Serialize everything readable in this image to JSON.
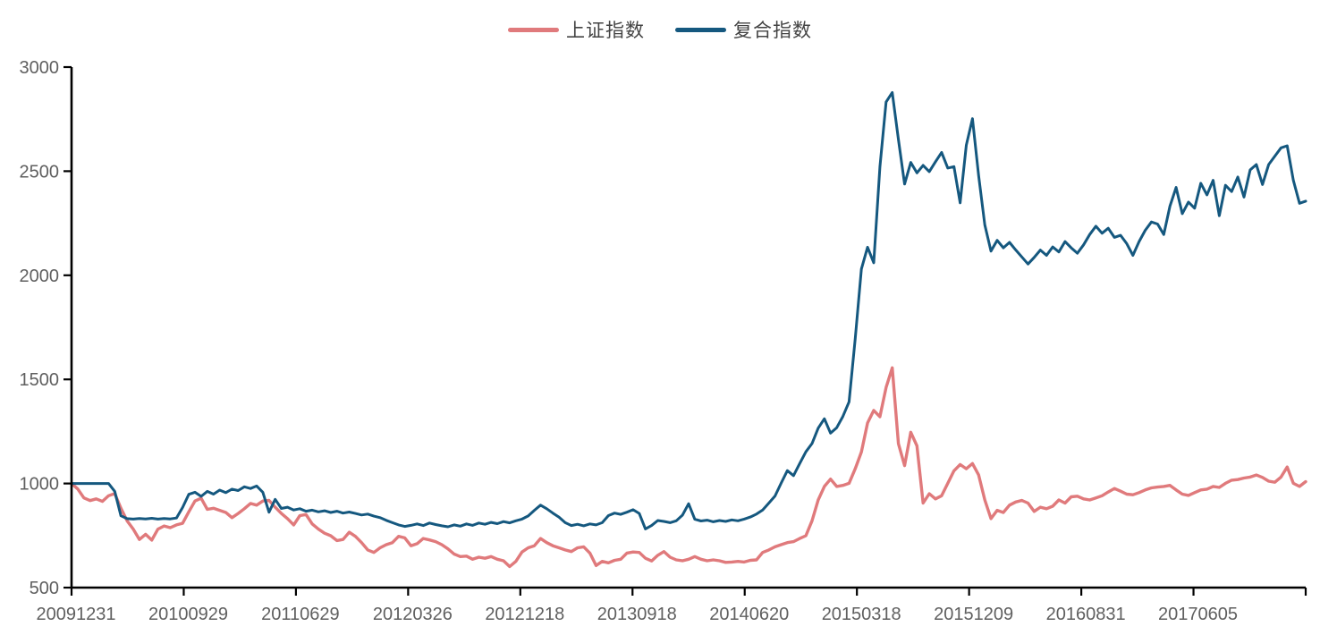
{
  "legend": {
    "items": [
      {
        "label": "上证指数",
        "color": "#e07a7c"
      },
      {
        "label": "复合指数",
        "color": "#15587f"
      }
    ]
  },
  "axes": {
    "axis_color": "#000000",
    "tick_label_color": "#5f5f5f"
  },
  "chart_data": {
    "type": "line",
    "title": "",
    "xlabel": "",
    "ylabel": "",
    "grid": false,
    "legend_position": "top-center",
    "ylim": [
      500,
      3000
    ],
    "yticks": [
      500,
      1000,
      1500,
      2000,
      2500,
      3000
    ],
    "x_labels": [
      "20091231",
      "20100929",
      "20110629",
      "20120326",
      "20121218",
      "20130918",
      "20140620",
      "20150318",
      "20151209",
      "20160831",
      "20170605"
    ],
    "x_tick_intervals": 11,
    "series": [
      {
        "name": "上证指数",
        "color": "#e07a7c",
        "line_width": 3.4,
        "values": [
          1000,
          974,
          931,
          918,
          926,
          914,
          941,
          952,
          881,
          821,
          781,
          731,
          756,
          728,
          781,
          796,
          788,
          801,
          809,
          864,
          916,
          929,
          876,
          881,
          871,
          861,
          836,
          856,
          879,
          904,
          896,
          916,
          919,
          886,
          856,
          831,
          801,
          846,
          851,
          806,
          781,
          761,
          749,
          726,
          731,
          766,
          746,
          716,
          681,
          669,
          691,
          706,
          716,
          746,
          739,
          701,
          711,
          736,
          729,
          721,
          706,
          686,
          661,
          649,
          651,
          636,
          646,
          641,
          649,
          636,
          629,
          601,
          626,
          671,
          691,
          701,
          736,
          716,
          701,
          691,
          681,
          673,
          691,
          696,
          666,
          606,
          626,
          619,
          631,
          636,
          666,
          671,
          669,
          641,
          628,
          655,
          673,
          646,
          633,
          629,
          636,
          649,
          636,
          629,
          633,
          629,
          621,
          623,
          626,
          623,
          631,
          633,
          669,
          681,
          696,
          706,
          716,
          721,
          736,
          749,
          821,
          921,
          986,
          1021,
          986,
          991,
          1001,
          1071,
          1151,
          1291,
          1351,
          1321,
          1461,
          1556,
          1191,
          1086,
          1246,
          1181,
          906,
          951,
          926,
          941,
          1001,
          1061,
          1091,
          1071,
          1096,
          1041,
          921,
          831,
          871,
          861,
          896,
          911,
          919,
          906,
          866,
          886,
          879,
          891,
          921,
          906,
          936,
          939,
          926,
          921,
          931,
          941,
          959,
          976,
          963,
          949,
          946,
          956,
          969,
          979,
          983,
          986,
          991,
          969,
          949,
          943,
          956,
          969,
          973,
          986,
          981,
          1001,
          1016,
          1019,
          1026,
          1031,
          1041,
          1029,
          1011,
          1006,
          1031,
          1079,
          1001,
          986,
          1009
        ]
      },
      {
        "name": "复合指数",
        "color": "#15587f",
        "line_width": 3,
        "values": [
          1000,
          1000,
          1000,
          1000,
          1000,
          1000,
          1000,
          962,
          845,
          831,
          829,
          832,
          830,
          833,
          829,
          832,
          830,
          834,
          885,
          948,
          958,
          938,
          962,
          949,
          968,
          956,
          973,
          966,
          984,
          976,
          988,
          958,
          862,
          924,
          880,
          886,
          873,
          879,
          867,
          872,
          864,
          869,
          861,
          867,
          858,
          863,
          856,
          849,
          853,
          843,
          836,
          823,
          812,
          801,
          794,
          799,
          806,
          798,
          810,
          803,
          797,
          792,
          801,
          795,
          806,
          799,
          810,
          804,
          813,
          807,
          817,
          811,
          821,
          829,
          844,
          871,
          896,
          879,
          858,
          838,
          812,
          798,
          804,
          797,
          806,
          801,
          812,
          846,
          858,
          852,
          862,
          874,
          856,
          782,
          798,
          822,
          818,
          812,
          821,
          848,
          903,
          828,
          820,
          824,
          816,
          822,
          818,
          825,
          821,
          829,
          839,
          853,
          873,
          906,
          940,
          1002,
          1062,
          1038,
          1096,
          1152,
          1192,
          1266,
          1311,
          1242,
          1268,
          1322,
          1392,
          1696,
          2030,
          2135,
          2060,
          2520,
          2832,
          2878,
          2652,
          2438,
          2542,
          2492,
          2528,
          2498,
          2545,
          2590,
          2515,
          2522,
          2348,
          2625,
          2752,
          2478,
          2242,
          2116,
          2168,
          2132,
          2158,
          2122,
          2088,
          2054,
          2086,
          2121,
          2096,
          2136,
          2112,
          2162,
          2132,
          2106,
          2146,
          2196,
          2236,
          2202,
          2226,
          2182,
          2192,
          2152,
          2096,
          2162,
          2216,
          2256,
          2246,
          2196,
          2332,
          2422,
          2296,
          2352,
          2322,
          2442,
          2386,
          2456,
          2286,
          2432,
          2402,
          2472,
          2376,
          2506,
          2532,
          2436,
          2532,
          2572,
          2612,
          2622,
          2456,
          2346,
          2356
        ]
      }
    ]
  }
}
